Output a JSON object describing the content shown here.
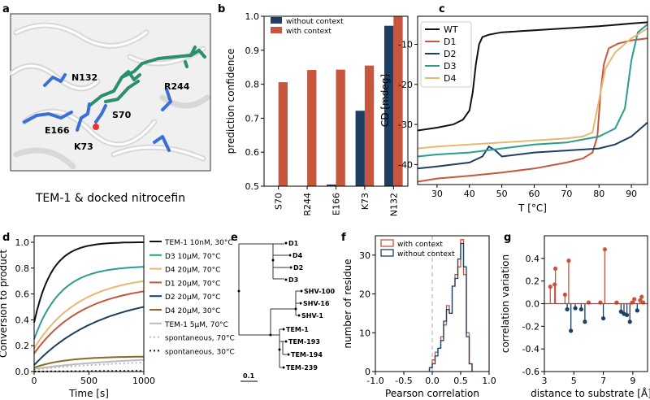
{
  "panel_letters": {
    "a": "a",
    "b": "b",
    "c": "c",
    "d": "d",
    "e": "e",
    "f": "f",
    "g": "g"
  },
  "panel_a": {
    "caption": "TEM-1 & docked nitrocefin",
    "residue_labels": [
      "N132",
      "R244",
      "S70",
      "E166",
      "K73"
    ]
  },
  "colors": {
    "orange": "#c8553d",
    "navy": "#1f3e63",
    "teal": "#2a9d8f",
    "tan": "#e9b86f",
    "black": "#111111",
    "gray": "#999999",
    "brown": "#8a6a25",
    "structure_green": "#2a8f6a",
    "structure_blue": "#3a6fd8"
  },
  "tree": {
    "scale_label": "0.1",
    "leaves": [
      "D1",
      "D4",
      "D2",
      "D3",
      "SHV-100",
      "SHV-16",
      "SHV-1",
      "TEM-1",
      "TEM-193",
      "TEM-194",
      "TEM-239"
    ]
  },
  "chart_data": [
    {
      "id": "b",
      "type": "bar",
      "categories": [
        "S70",
        "R244",
        "E166",
        "K73",
        "N132"
      ],
      "series": [
        {
          "name": "without context",
          "values": [
            0.5,
            0.5,
            0.505,
            0.722,
            0.972
          ]
        },
        {
          "name": "with context",
          "values": [
            0.806,
            0.842,
            0.843,
            0.855,
            1.0
          ]
        }
      ],
      "ylabel": "prediction confidence",
      "xlabel": "",
      "ylim": [
        0.5,
        1.0
      ],
      "yticks": [
        "0.5",
        "0.6",
        "0.7",
        "0.8",
        "0.9",
        "1.0"
      ],
      "legend": "top-left"
    },
    {
      "id": "c",
      "type": "line",
      "xlabel": "T [°C]",
      "ylabel": "CD [mdeg]",
      "xlim": [
        24,
        95
      ],
      "ylim": [
        -45,
        -3
      ],
      "xticks": [
        "30",
        "40",
        "50",
        "60",
        "70",
        "80",
        "90"
      ],
      "yticks": [
        "-10",
        "-20",
        "-30",
        "-40"
      ],
      "legend": "top-left",
      "series": [
        {
          "name": "WT",
          "x": [
            24,
            30,
            35,
            38,
            40,
            41,
            42,
            43,
            44,
            46,
            50,
            60,
            70,
            80,
            90,
            95
          ],
          "y": [
            -31.5,
            -30.8,
            -30,
            -28.8,
            -26.5,
            -22,
            -15,
            -10,
            -8.2,
            -7.6,
            -7,
            -6.5,
            -6,
            -5.5,
            -4.8,
            -4.5
          ]
        },
        {
          "name": "D1",
          "x": [
            24,
            30,
            40,
            50,
            60,
            70,
            75,
            78,
            79.5,
            80.5,
            81.5,
            83,
            86,
            90,
            95
          ],
          "y": [
            -44.3,
            -43.5,
            -42.8,
            -42,
            -41,
            -39.5,
            -38.5,
            -37,
            -33,
            -22,
            -15,
            -11,
            -9.8,
            -9,
            -8.5
          ]
        },
        {
          "name": "D2",
          "x": [
            24,
            30,
            40,
            44,
            46,
            48,
            50,
            60,
            70,
            80,
            85,
            90,
            95
          ],
          "y": [
            -41,
            -40.5,
            -39.5,
            -38,
            -35.5,
            -36.5,
            -38,
            -37,
            -36.5,
            -36,
            -35,
            -33,
            -29.5
          ]
        },
        {
          "name": "D3",
          "x": [
            24,
            30,
            40,
            50,
            60,
            70,
            80,
            85,
            88,
            90,
            92,
            95
          ],
          "y": [
            -38,
            -37.5,
            -37,
            -36,
            -35,
            -34.5,
            -33,
            -31,
            -26,
            -14,
            -7,
            -5
          ]
        },
        {
          "name": "D4",
          "x": [
            24,
            30,
            40,
            50,
            60,
            70,
            75,
            78,
            80,
            82,
            85,
            90,
            95
          ],
          "y": [
            -36,
            -35.5,
            -35,
            -34.5,
            -34,
            -33.5,
            -33,
            -32,
            -24,
            -16,
            -12,
            -8.5,
            -6
          ]
        }
      ]
    },
    {
      "id": "d",
      "type": "line",
      "xlabel": "Time [s]",
      "ylabel": "Conversion to product",
      "xlim": [
        0,
        1000
      ],
      "ylim": [
        0,
        1.05
      ],
      "xticks": [
        "0",
        "500",
        "1000"
      ],
      "yticks": [
        "0.0",
        "0.2",
        "0.4",
        "0.6",
        "0.8",
        "1.0"
      ],
      "legend": "right",
      "series": [
        {
          "name": "TEM-1 10nM, 30°C",
          "final": 1.0,
          "rate": 6.2,
          "offset": 0.38,
          "style": "solid"
        },
        {
          "name": "D3 10μM, 70°C",
          "final": 0.81,
          "rate": 4.2,
          "offset": 0.25,
          "style": "solid"
        },
        {
          "name": "D4 20μM, 70°C",
          "final": 0.7,
          "rate": 2.4,
          "offset": 0.18,
          "style": "solid"
        },
        {
          "name": "D1 20μM, 70°C",
          "final": 0.62,
          "rate": 2.2,
          "offset": 0.14,
          "style": "solid"
        },
        {
          "name": "D2 20μM, 70°C",
          "final": 0.5,
          "rate": 1.6,
          "offset": 0.05,
          "style": "solid"
        },
        {
          "name": "D4 20μM, 30°C",
          "final": 0.115,
          "rate": 3.5,
          "offset": 0.03,
          "style": "solid"
        },
        {
          "name": "TEM-1 5μM, 70°C",
          "final": 0.09,
          "rate": 1.2,
          "offset": 0.02,
          "style": "solid"
        },
        {
          "name": "spontaneous, 70°C",
          "final": 0.07,
          "rate": 1.0,
          "offset": 0.015,
          "style": "dotted"
        },
        {
          "name": "spontaneous, 30°C",
          "final": 0.005,
          "rate": 1.0,
          "offset": 0.0,
          "style": "dotted"
        }
      ]
    },
    {
      "id": "f",
      "type": "histogram",
      "xlabel": "Pearson correlation",
      "ylabel": "number of residue",
      "xlim": [
        -1.0,
        1.0
      ],
      "ylim": [
        0,
        35
      ],
      "xticks": [
        "-1.0",
        "-0.5",
        "0.0",
        "0.5",
        "1.0"
      ],
      "yticks": [
        "0",
        "10",
        "20",
        "30"
      ],
      "bin_start": -0.05,
      "bin_width": 0.05,
      "legend": "top-left",
      "series": [
        {
          "name": "with context",
          "counts": [
            1,
            3,
            5,
            6,
            9,
            12,
            17,
            15,
            22,
            25,
            27,
            34,
            25,
            10,
            2
          ]
        },
        {
          "name": "without context",
          "counts": [
            1,
            2,
            4,
            6,
            8,
            13,
            16,
            15,
            22,
            24,
            29,
            33,
            27,
            9,
            2
          ]
        }
      ]
    },
    {
      "id": "g",
      "type": "stem",
      "xlabel": "distance to substrate [Å]",
      "ylabel": "correlation variation",
      "xlim": [
        3,
        10
      ],
      "ylim": [
        -0.6,
        0.6
      ],
      "xticks": [
        "3",
        "5",
        "7",
        "9"
      ],
      "yticks": [
        "-0.6",
        "-0.4",
        "-0.2",
        "0.0",
        "0.2",
        "0.4"
      ],
      "x": [
        3.4,
        3.7,
        3.75,
        4.4,
        4.55,
        4.65,
        4.8,
        5.1,
        5.5,
        5.75,
        6.0,
        6.8,
        7.0,
        7.1,
        7.9,
        8.2,
        8.4,
        8.6,
        8.8,
        8.95,
        9.1,
        9.3,
        9.5,
        9.6,
        9.7
      ],
      "y": [
        0.15,
        0.17,
        0.31,
        0.08,
        -0.05,
        0.38,
        -0.24,
        -0.04,
        -0.05,
        -0.16,
        0.01,
        0.01,
        -0.13,
        0.48,
        0.01,
        -0.07,
        -0.09,
        -0.1,
        -0.16,
        0.01,
        0.04,
        -0.06,
        0.03,
        0.06,
        0.01
      ]
    }
  ]
}
